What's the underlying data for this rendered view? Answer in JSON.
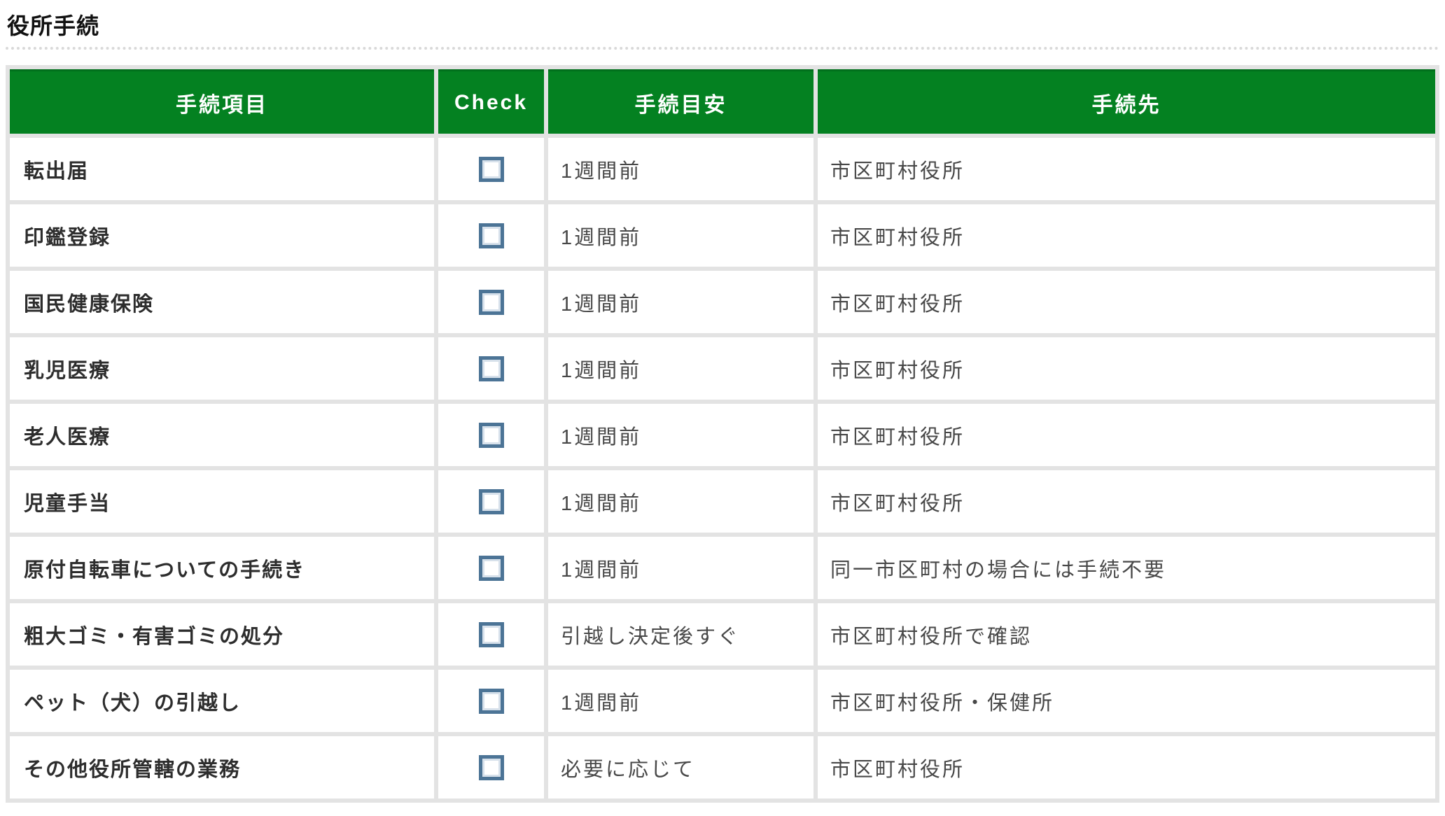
{
  "page": {
    "title": "役所手続"
  },
  "table": {
    "columns": [
      "手続項目",
      "Check",
      "手続目安",
      "手続先"
    ],
    "rows": [
      {
        "item": "転出届",
        "checked": false,
        "due": "1週間前",
        "where": "市区町村役所"
      },
      {
        "item": "印鑑登録",
        "checked": false,
        "due": "1週間前",
        "where": "市区町村役所"
      },
      {
        "item": "国民健康保険",
        "checked": false,
        "due": "1週間前",
        "where": "市区町村役所"
      },
      {
        "item": "乳児医療",
        "checked": false,
        "due": "1週間前",
        "where": "市区町村役所"
      },
      {
        "item": "老人医療",
        "checked": false,
        "due": "1週間前",
        "where": "市区町村役所"
      },
      {
        "item": "児童手当",
        "checked": false,
        "due": "1週間前",
        "where": "市区町村役所"
      },
      {
        "item": "原付自転車についての手続き",
        "checked": false,
        "due": "1週間前",
        "where": "同一市区町村の場合には手続不要"
      },
      {
        "item": "粗大ゴミ・有害ゴミの処分",
        "checked": false,
        "due": "引越し決定後すぐ",
        "where": "市区町村役所で確認"
      },
      {
        "item": "ペット（犬）の引越し",
        "checked": false,
        "due": "1週間前",
        "where": "市区町村役所・保健所"
      },
      {
        "item": "その他役所管轄の業務",
        "checked": false,
        "due": "必要に応じて",
        "where": "市区町村役所"
      }
    ]
  },
  "colors": {
    "header_green": "#048121",
    "header_green_dark_edge": "#01701c",
    "gutter_gray": "#e3e3e3",
    "checkbox_blue": "#4c7496",
    "title_text": "#111111",
    "item_text": "#2d2d2d",
    "body_text": "#484848"
  }
}
